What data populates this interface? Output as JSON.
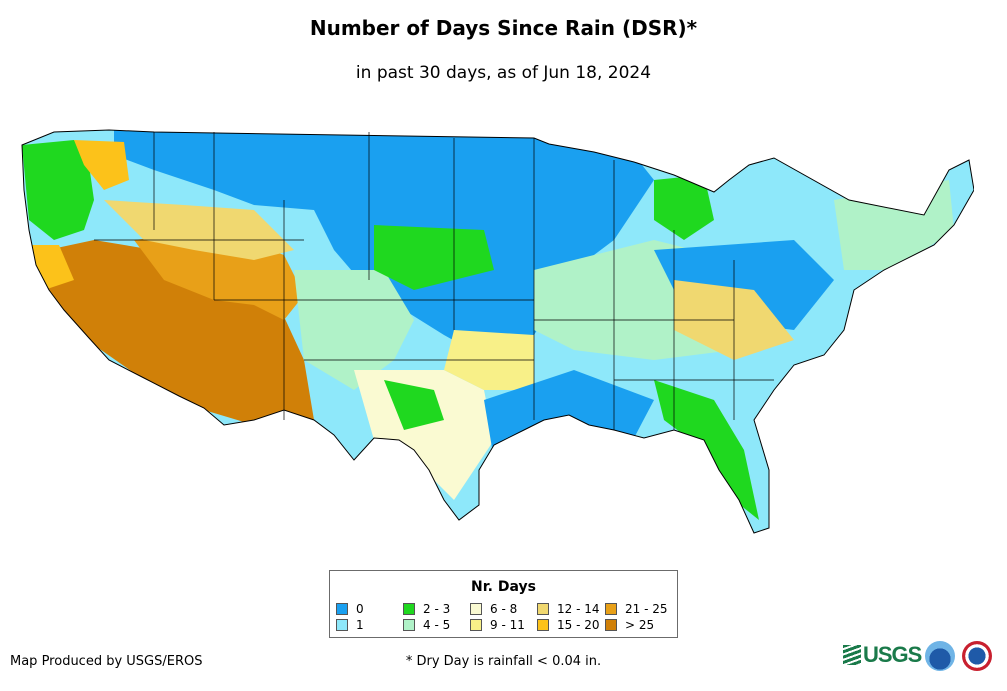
{
  "header": {
    "title": "Number of Days Since Rain (DSR)*",
    "subtitle": "in past 30 days, as of Jun 18, 2024"
  },
  "legend": {
    "title": "Nr. Days",
    "items": [
      {
        "label": "0",
        "color": "#1aa0f0"
      },
      {
        "label": "1",
        "color": "#8ee8fa"
      },
      {
        "label": "2 - 3",
        "color": "#1fd81f"
      },
      {
        "label": "4 - 5",
        "color": "#b0f2c8"
      },
      {
        "label": "6 - 8",
        "color": "#fafad2"
      },
      {
        "label": "9 - 11",
        "color": "#f8f088"
      },
      {
        "label": "12 - 14",
        "color": "#f0d870"
      },
      {
        "label": "15 - 20",
        "color": "#fcc21a"
      },
      {
        "label": "21 - 25",
        "color": "#e8a018"
      },
      {
        "label": "> 25",
        "color": "#d08008"
      }
    ]
  },
  "footer": {
    "credit": "Map Produced by USGS/EROS",
    "footnote": "* Dry Day is rainfall < 0.04 in.",
    "logos": {
      "usgs": "USGS"
    }
  }
}
